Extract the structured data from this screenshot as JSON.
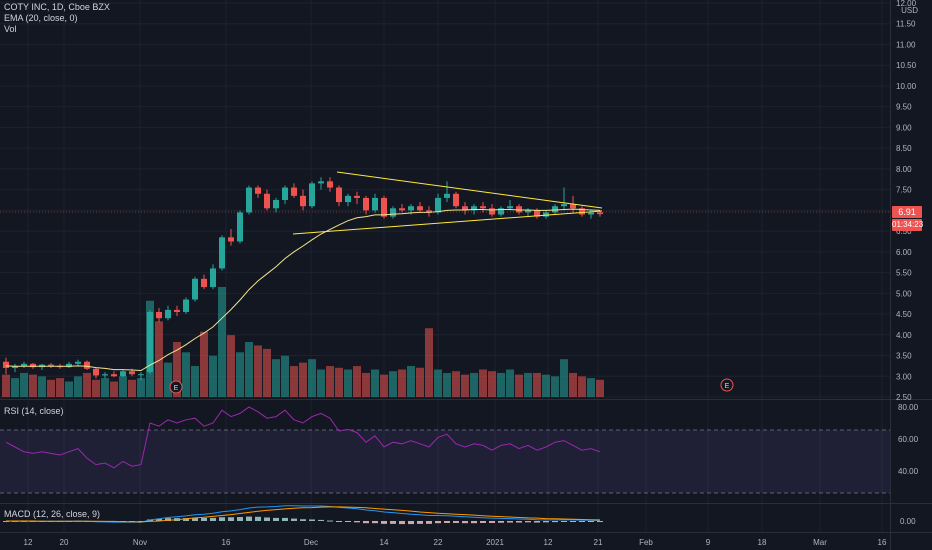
{
  "legend": {
    "symbol": "COTY INC, 1D, Cboe BZX",
    "ema": "EMA (20, close, 0)",
    "vol": "Vol",
    "rsi": "RSI (14, close)",
    "macd": "MACD (12, 26, close, 9)"
  },
  "axis": {
    "currency": "USD",
    "last_price": "6.91",
    "countdown": "01:34:23",
    "event_marker": "E"
  },
  "colors": {
    "up": "#26a69a",
    "down": "#ef5350",
    "ema": "#f0e68c",
    "trendline": "#ffeb3b",
    "rsi": "#9c27b0",
    "macd": "#2196f3",
    "signal": "#ff9800"
  },
  "chart_data": [
    {
      "type": "candlestick",
      "ylim": [
        2.5,
        12.0
      ],
      "yticks": [
        "2.50",
        "3.00",
        "3.50",
        "4.00",
        "4.50",
        "5.00",
        "5.50",
        "6.00",
        "6.50",
        "7.00",
        "7.50",
        "8.00",
        "8.50",
        "9.00",
        "9.50",
        "10.00",
        "10.50",
        "11.00",
        "11.50",
        "12.00"
      ],
      "xticks": [
        "12",
        "20",
        "Nov",
        "16",
        "Dec",
        "14",
        "22",
        "2021",
        "12",
        "21",
        "Feb",
        "9",
        "18",
        "Mar",
        "16"
      ],
      "ohlc": [
        [
          3.35,
          3.45,
          3.05,
          3.2
        ],
        [
          3.2,
          3.3,
          3.1,
          3.25
        ],
        [
          3.25,
          3.35,
          3.2,
          3.3
        ],
        [
          3.3,
          3.32,
          3.18,
          3.22
        ],
        [
          3.22,
          3.3,
          3.15,
          3.28
        ],
        [
          3.28,
          3.32,
          3.2,
          3.25
        ],
        [
          3.25,
          3.3,
          3.18,
          3.22
        ],
        [
          3.22,
          3.35,
          3.2,
          3.3
        ],
        [
          3.3,
          3.4,
          3.25,
          3.35
        ],
        [
          3.35,
          3.38,
          3.15,
          3.18
        ],
        [
          3.18,
          3.2,
          2.95,
          3.02
        ],
        [
          3.02,
          3.1,
          2.95,
          3.05
        ],
        [
          3.05,
          3.12,
          2.98,
          3.0
        ],
        [
          3.0,
          3.15,
          2.98,
          3.12
        ],
        [
          3.12,
          3.18,
          3.0,
          3.05
        ],
        [
          3.05,
          3.1,
          2.9,
          3.05
        ],
        [
          3.1,
          4.6,
          3.05,
          4.55
        ],
        [
          4.55,
          4.65,
          4.3,
          4.4
        ],
        [
          4.4,
          4.7,
          4.35,
          4.6
        ],
        [
          4.6,
          4.7,
          4.45,
          4.55
        ],
        [
          4.55,
          4.9,
          4.5,
          4.85
        ],
        [
          4.85,
          5.4,
          4.8,
          5.35
        ],
        [
          5.35,
          5.45,
          5.1,
          5.15
        ],
        [
          5.15,
          5.7,
          5.1,
          5.6
        ],
        [
          5.6,
          6.4,
          5.55,
          6.35
        ],
        [
          6.35,
          6.55,
          6.15,
          6.25
        ],
        [
          6.25,
          7.0,
          6.2,
          6.95
        ],
        [
          6.95,
          7.6,
          6.9,
          7.55
        ],
        [
          7.55,
          7.6,
          7.3,
          7.4
        ],
        [
          7.4,
          7.5,
          7.0,
          7.05
        ],
        [
          7.05,
          7.3,
          6.95,
          7.25
        ],
        [
          7.25,
          7.6,
          7.15,
          7.55
        ],
        [
          7.55,
          7.65,
          7.3,
          7.35
        ],
        [
          7.35,
          7.5,
          7.0,
          7.1
        ],
        [
          7.1,
          7.7,
          7.05,
          7.65
        ],
        [
          7.65,
          7.8,
          7.5,
          7.7
        ],
        [
          7.7,
          7.8,
          7.45,
          7.55
        ],
        [
          7.55,
          7.6,
          7.1,
          7.2
        ],
        [
          7.2,
          7.4,
          7.1,
          7.35
        ],
        [
          7.35,
          7.45,
          7.15,
          7.3
        ],
        [
          7.3,
          7.35,
          6.9,
          7.0
        ],
        [
          7.0,
          7.4,
          6.95,
          7.3
        ],
        [
          7.3,
          7.35,
          6.8,
          6.85
        ],
        [
          6.85,
          7.1,
          6.8,
          7.05
        ],
        [
          7.05,
          7.15,
          6.95,
          7.0
        ],
        [
          7.0,
          7.15,
          6.9,
          7.1
        ],
        [
          7.1,
          7.2,
          6.95,
          7.0
        ],
        [
          7.0,
          7.1,
          6.85,
          6.95
        ],
        [
          6.95,
          7.4,
          6.9,
          7.3
        ],
        [
          7.3,
          7.7,
          7.2,
          7.4
        ],
        [
          7.4,
          7.45,
          7.05,
          7.1
        ],
        [
          7.1,
          7.2,
          6.9,
          7.0
        ],
        [
          7.0,
          7.15,
          6.9,
          7.1
        ],
        [
          7.1,
          7.2,
          6.95,
          7.05
        ],
        [
          7.05,
          7.15,
          6.85,
          6.9
        ],
        [
          6.9,
          7.1,
          6.85,
          7.05
        ],
        [
          7.05,
          7.25,
          7.0,
          7.1
        ],
        [
          7.1,
          7.15,
          6.9,
          6.95
        ],
        [
          6.95,
          7.05,
          6.85,
          7.0
        ],
        [
          7.0,
          7.05,
          6.8,
          6.85
        ],
        [
          6.85,
          7.0,
          6.8,
          6.95
        ],
        [
          6.95,
          7.15,
          6.9,
          7.1
        ],
        [
          7.1,
          7.55,
          7.0,
          7.15
        ],
        [
          7.15,
          7.35,
          6.95,
          7.05
        ],
        [
          7.05,
          7.1,
          6.85,
          6.9
        ],
        [
          6.9,
          7.0,
          6.8,
          6.95
        ],
        [
          6.95,
          7.0,
          6.85,
          6.91
        ]
      ],
      "ema": [
        3.25,
        3.24,
        3.24,
        3.24,
        3.24,
        3.24,
        3.24,
        3.24,
        3.25,
        3.24,
        3.21,
        3.19,
        3.16,
        3.16,
        3.15,
        3.14,
        3.27,
        3.38,
        3.52,
        3.63,
        3.76,
        3.91,
        4.04,
        4.19,
        4.4,
        4.61,
        4.84,
        5.09,
        5.3,
        5.47,
        5.64,
        5.84,
        6.0,
        6.14,
        6.29,
        6.43,
        6.54,
        6.65,
        6.75,
        6.82,
        6.85,
        6.89,
        6.89,
        6.91,
        6.92,
        6.94,
        6.95,
        6.95,
        6.97,
        7.0,
        7.01,
        7.01,
        7.02,
        7.02,
        7.01,
        7.02,
        7.02,
        7.01,
        7.01,
        7.0,
        7.0,
        7.01,
        7.02,
        7.03,
        7.02,
        7.01,
        7.0
      ]
    },
    {
      "type": "bar",
      "title": "Vol",
      "values": [
        0.65,
        0.55,
        0.7,
        0.65,
        0.6,
        0.5,
        0.55,
        0.45,
        0.6,
        0.7,
        0.5,
        0.55,
        0.45,
        0.6,
        0.5,
        0.55,
        2.8,
        2.2,
        1.0,
        1.6,
        1.3,
        0.9,
        1.9,
        1.2,
        3.2,
        1.8,
        1.3,
        1.6,
        1.5,
        1.4,
        1.1,
        1.2,
        0.9,
        1.0,
        1.1,
        0.8,
        0.9,
        0.85,
        0.8,
        0.9,
        0.7,
        0.8,
        0.65,
        0.75,
        0.8,
        0.9,
        0.85,
        2.0,
        0.8,
        0.7,
        0.75,
        0.65,
        0.7,
        0.8,
        0.75,
        0.7,
        0.8,
        0.65,
        0.7,
        0.7,
        0.65,
        0.6,
        1.1,
        0.7,
        0.6,
        0.55,
        0.5
      ]
    },
    {
      "type": "line",
      "title": "RSI (14, close)",
      "ylim": [
        20,
        85
      ],
      "yticks": [
        "40.00",
        "60.00",
        "80.00"
      ],
      "values": [
        58,
        55,
        52,
        51,
        52,
        51,
        50,
        52,
        54,
        48,
        44,
        45,
        42,
        46,
        43,
        44,
        70,
        68,
        72,
        70,
        72,
        73,
        68,
        70,
        78,
        74,
        76,
        80,
        77,
        73,
        74,
        78,
        72,
        70,
        74,
        76,
        73,
        65,
        66,
        64,
        58,
        62,
        55,
        58,
        57,
        59,
        57,
        55,
        61,
        63,
        57,
        55,
        57,
        56,
        53,
        56,
        57,
        54,
        56,
        53,
        55,
        58,
        59,
        56,
        53,
        54,
        52
      ]
    },
    {
      "type": "bar",
      "title": "MACD (12, 26, close, 9)",
      "yticks": [
        "0.00"
      ],
      "macd": [
        0.0,
        -0.01,
        -0.01,
        -0.01,
        -0.01,
        -0.01,
        -0.01,
        -0.01,
        0.0,
        -0.01,
        -0.03,
        -0.04,
        -0.05,
        -0.05,
        -0.05,
        -0.06,
        0.05,
        0.1,
        0.16,
        0.19,
        0.23,
        0.28,
        0.31,
        0.35,
        0.42,
        0.46,
        0.52,
        0.59,
        0.63,
        0.64,
        0.66,
        0.69,
        0.69,
        0.68,
        0.68,
        0.68,
        0.66,
        0.62,
        0.59,
        0.56,
        0.5,
        0.47,
        0.41,
        0.38,
        0.34,
        0.31,
        0.28,
        0.25,
        0.25,
        0.24,
        0.22,
        0.19,
        0.17,
        0.15,
        0.13,
        0.12,
        0.11,
        0.09,
        0.08,
        0.06,
        0.05,
        0.05,
        0.05,
        0.05,
        0.04,
        0.03,
        0.02
      ],
      "signal": [
        0.0,
        0.0,
        0.0,
        0.0,
        -0.01,
        -0.01,
        -0.01,
        -0.01,
        -0.01,
        -0.01,
        -0.01,
        -0.02,
        -0.02,
        -0.03,
        -0.03,
        -0.04,
        -0.02,
        0.0,
        0.03,
        0.06,
        0.1,
        0.14,
        0.17,
        0.21,
        0.25,
        0.29,
        0.34,
        0.39,
        0.44,
        0.48,
        0.52,
        0.55,
        0.58,
        0.6,
        0.61,
        0.63,
        0.64,
        0.64,
        0.63,
        0.62,
        0.6,
        0.57,
        0.54,
        0.51,
        0.48,
        0.45,
        0.41,
        0.38,
        0.35,
        0.33,
        0.31,
        0.29,
        0.27,
        0.24,
        0.22,
        0.2,
        0.18,
        0.16,
        0.14,
        0.13,
        0.11,
        0.1,
        0.09,
        0.08,
        0.07,
        0.06,
        0.05
      ]
    }
  ]
}
